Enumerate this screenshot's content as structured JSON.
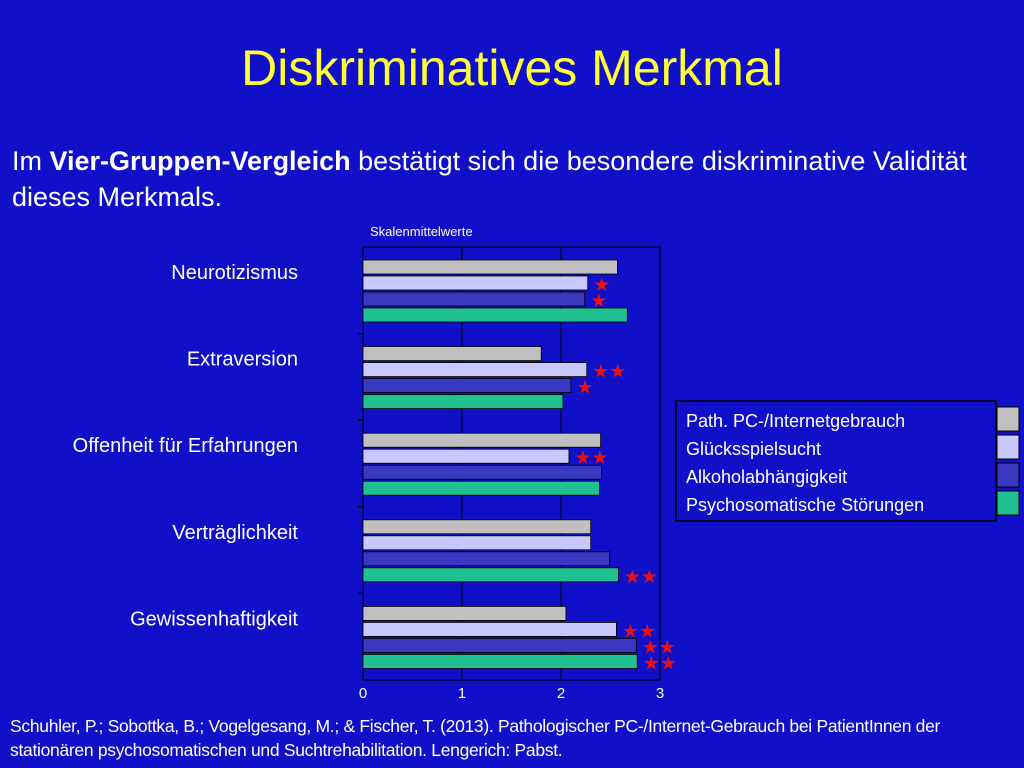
{
  "slide": {
    "title": "Diskriminatives Merkmal",
    "intro_prefix": "Im ",
    "intro_bold": "Vier-Gruppen-Vergleich",
    "intro_suffix": " bestätigt sich die besondere diskriminative Validität dieses Merkmals.",
    "citation": "Schuhler, P.; Sobottka, B.; Vogelgesang, M.; & Fischer, T. (2013). Pathologischer PC-/Internet-Gebrauch bei PatientInnen der stationären psychosomatischen und Suchtrehabilitation. Lengerich: Pabst."
  },
  "colors": {
    "background": "#1010c8",
    "title": "#ffff33",
    "plot_bg": "#1010c8",
    "star": "#e81010"
  },
  "chart_data": {
    "type": "bar",
    "orientation": "horizontal",
    "title": "Skalenmittelwerte",
    "xlim": [
      0,
      3
    ],
    "xticks": [
      "0",
      "1",
      "2",
      "3"
    ],
    "grid": "vertical",
    "legend_placement": "right",
    "categories": [
      "Neurotizismus",
      "Extraversion",
      "Offenheit für Erfahrungen",
      "Verträglichkeit",
      "Gewissenhaftigkeit"
    ],
    "series": [
      {
        "name": "Path. PC-/Internetgebrauch",
        "color": "#c0c0c0",
        "values": [
          2.57,
          1.8,
          2.4,
          2.3,
          2.05
        ],
        "stars": [
          0,
          0,
          0,
          0,
          0
        ]
      },
      {
        "name": "Glücksspielsucht",
        "color": "#c8c8ff",
        "values": [
          2.27,
          2.26,
          2.08,
          2.3,
          2.56
        ],
        "stars": [
          1,
          2,
          2,
          0,
          2
        ]
      },
      {
        "name": "Alkoholabhängigkeit",
        "color": "#3838c0",
        "values": [
          2.24,
          2.1,
          2.41,
          2.49,
          2.76
        ],
        "stars": [
          1,
          1,
          0,
          0,
          2
        ]
      },
      {
        "name": "Psychosomatische Störungen",
        "color": "#20c090",
        "values": [
          2.67,
          2.02,
          2.39,
          2.58,
          2.77
        ],
        "stars": [
          0,
          0,
          0,
          2,
          2
        ]
      }
    ]
  }
}
